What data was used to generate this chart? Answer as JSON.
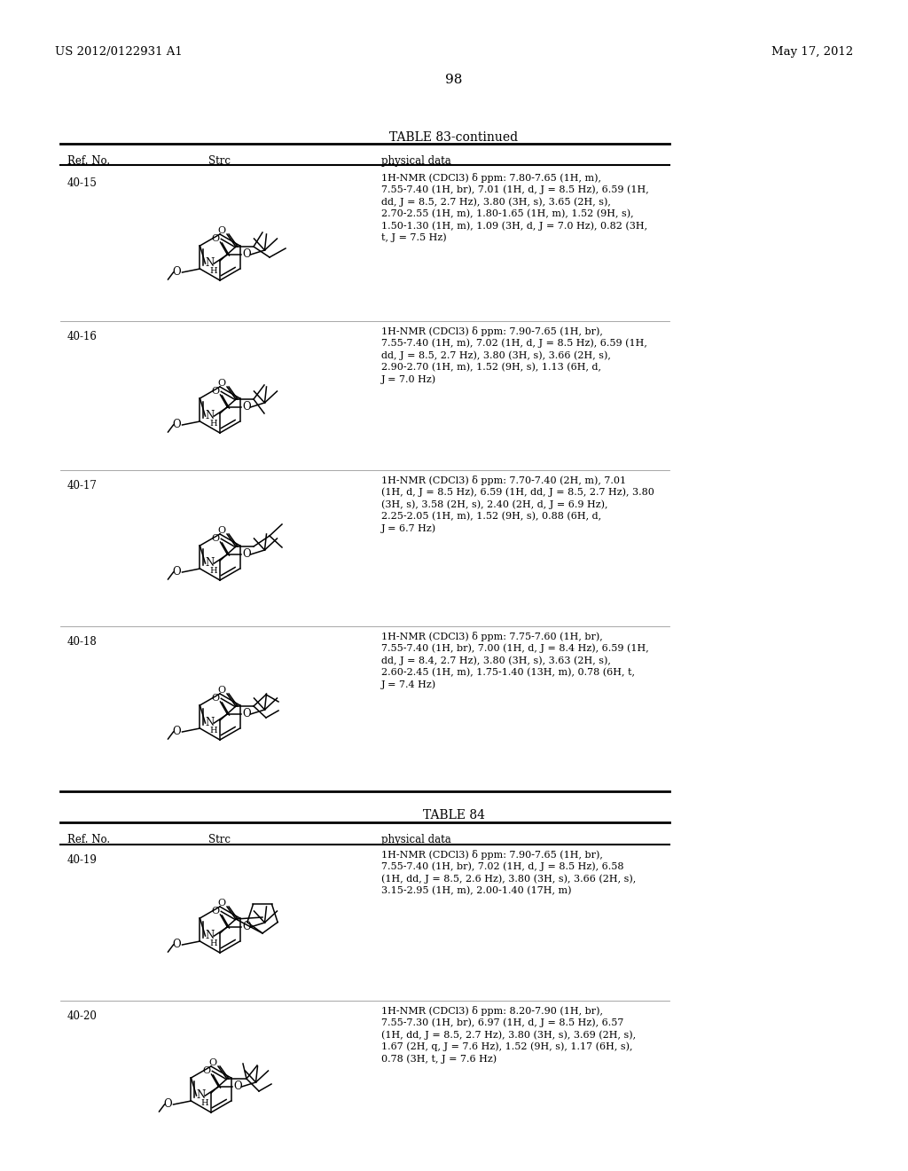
{
  "page_header_left": "US 2012/0122931 A1",
  "page_header_right": "May 17, 2012",
  "page_number": "98",
  "table83_title": "TABLE 83-continued",
  "table84_title": "TABLE 84",
  "background_color": "#ffffff",
  "rows_83": [
    {
      "ref": "40-15",
      "nmr": "1H-NMR (CDCl3) δ ppm: 7.80-7.65 (1H, m),\n7.55-7.40 (1H, br), 7.01 (1H, d, J = 8.5 Hz), 6.59 (1H,\ndd, J = 8.5, 2.7 Hz), 3.80 (3H, s), 3.65 (2H, s),\n2.70-2.55 (1H, m), 1.80-1.65 (1H, m), 1.52 (9H, s),\n1.50-1.30 (1H, m), 1.09 (3H, d, J = 7.0 Hz), 0.82 (3H,\nt, J = 7.5 Hz)"
    },
    {
      "ref": "40-16",
      "nmr": "1H-NMR (CDCl3) δ ppm: 7.90-7.65 (1H, br),\n7.55-7.40 (1H, m), 7.02 (1H, d, J = 8.5 Hz), 6.59 (1H,\ndd, J = 8.5, 2.7 Hz), 3.80 (3H, s), 3.66 (2H, s),\n2.90-2.70 (1H, m), 1.52 (9H, s), 1.13 (6H, d,\nJ = 7.0 Hz)"
    },
    {
      "ref": "40-17",
      "nmr": "1H-NMR (CDCl3) δ ppm: 7.70-7.40 (2H, m), 7.01\n(1H, d, J = 8.5 Hz), 6.59 (1H, dd, J = 8.5, 2.7 Hz), 3.80\n(3H, s), 3.58 (2H, s), 2.40 (2H, d, J = 6.9 Hz),\n2.25-2.05 (1H, m), 1.52 (9H, s), 0.88 (6H, d,\nJ = 6.7 Hz)"
    },
    {
      "ref": "40-18",
      "nmr": "1H-NMR (CDCl3) δ ppm: 7.75-7.60 (1H, br),\n7.55-7.40 (1H, br), 7.00 (1H, d, J = 8.4 Hz), 6.59 (1H,\ndd, J = 8.4, 2.7 Hz), 3.80 (3H, s), 3.63 (2H, s),\n2.60-2.45 (1H, m), 1.75-1.40 (13H, m), 0.78 (6H, t,\nJ = 7.4 Hz)"
    }
  ],
  "rows_84": [
    {
      "ref": "40-19",
      "nmr": "1H-NMR (CDCl3) δ ppm: 7.90-7.65 (1H, br),\n7.55-7.40 (1H, br), 7.02 (1H, d, J = 8.5 Hz), 6.58\n(1H, dd, J = 8.5, 2.6 Hz), 3.80 (3H, s), 3.66 (2H, s),\n3.15-2.95 (1H, m), 2.00-1.40 (17H, m)"
    },
    {
      "ref": "40-20",
      "nmr": "1H-NMR (CDCl3) δ ppm: 8.20-7.90 (1H, br),\n7.55-7.30 (1H, br), 6.97 (1H, d, J = 8.5 Hz), 6.57\n(1H, dd, J = 8.5, 2.7 Hz), 3.80 (3H, s), 3.69 (2H, s),\n1.67 (2H, q, J = 7.6 Hz), 1.52 (9H, s), 1.17 (6H, s),\n0.78 (3H, t, J = 7.6 Hz)"
    }
  ]
}
